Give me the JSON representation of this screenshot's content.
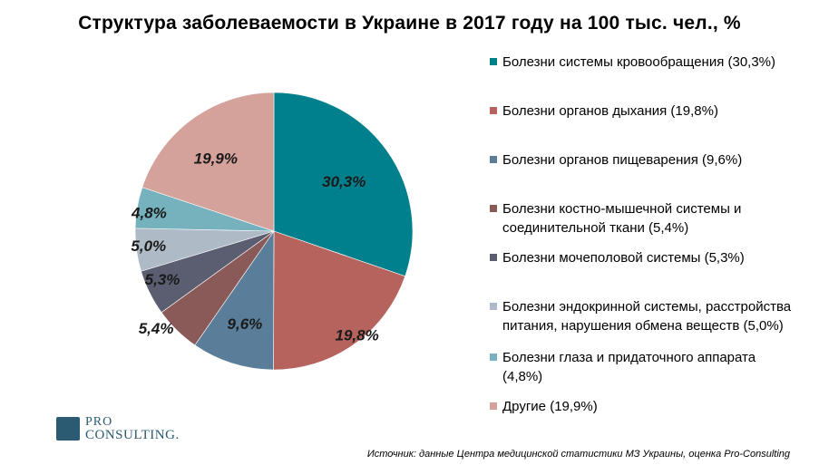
{
  "chart_data": {
    "type": "pie",
    "title": "Структура заболеваемости в Украине в 2017 году на 100 тыс. чел., %",
    "slices": [
      {
        "legend": "Болезни системы кровообращения (30,3%)",
        "value": 30.3,
        "label": "30,3%",
        "color": "#00808c"
      },
      {
        "legend": "Болезни органов дыхания (19,8%)",
        "value": 19.8,
        "label": "19,8%",
        "color": "#b5635c"
      },
      {
        "legend": "Болезни органов пищеварения (9,6%)",
        "value": 9.6,
        "label": "9,6%",
        "color": "#5a7e99"
      },
      {
        "legend": "Болезни костно-мышечной системы и соединительной ткани (5,4%)",
        "value": 5.4,
        "label": "5,4%",
        "color": "#8a5a58"
      },
      {
        "legend": "Болезни мочеполовой системы (5,3%)",
        "value": 5.3,
        "label": "5,3%",
        "color": "#5a5e70"
      },
      {
        "legend": "Болезни эндокринной системы, расстройства питания, нарушения обмена веществ (5,0%)",
        "value": 5.0,
        "label": "5,0%",
        "color": "#aebbc6"
      },
      {
        "legend": "Болезни глаза и придаточного аппарата (4,8%)",
        "value": 4.8,
        "label": "4,8%",
        "color": "#76b2bd"
      },
      {
        "legend": "Другие (19,9%)",
        "value": 19.9,
        "label": "19,9%",
        "color": "#d4a19b"
      }
    ],
    "start_angle": "12 o'clock",
    "direction": "clockwise",
    "legend_position": "right"
  },
  "logo": {
    "line1": "PRO",
    "line2": "CONSULTING."
  },
  "source": "Источник: данные Центра медицинской статистики МЗ Украины, оценка Pro-Consulting"
}
